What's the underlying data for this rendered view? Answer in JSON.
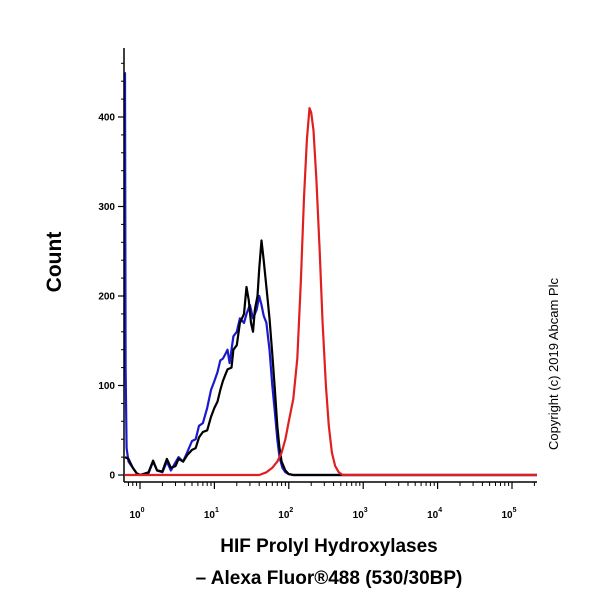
{
  "chart_data": {
    "type": "line",
    "title": "",
    "xlabel_line1": "HIF Prolyl Hydroxylases",
    "xlabel_line2": "– Alexa Fluor®488 (530/30BP)",
    "ylabel": "Count",
    "copyright": "Copyright (c) 2019 Abcam Plc",
    "xscale": "log",
    "xlim": [
      0.6,
      250000
    ],
    "ylim": [
      0,
      460
    ],
    "grid": false,
    "legend": "none",
    "yticks": [
      {
        "value": 0,
        "label": "0"
      },
      {
        "value": 100,
        "label": "100"
      },
      {
        "value": 200,
        "label": "200"
      },
      {
        "value": 300,
        "label": "300"
      },
      {
        "value": 400,
        "label": "400"
      }
    ],
    "xticks": [
      {
        "value": 1,
        "base": "10",
        "exp": "0"
      },
      {
        "value": 10,
        "base": "10",
        "exp": "1"
      },
      {
        "value": 100,
        "base": "10",
        "exp": "2"
      },
      {
        "value": 1000,
        "base": "10",
        "exp": "3"
      },
      {
        "value": 10000,
        "base": "10",
        "exp": "4"
      },
      {
        "value": 100000,
        "base": "10",
        "exp": "5"
      }
    ],
    "series": [
      {
        "color": "#1a1acc",
        "points": [
          [
            0.62,
            450
          ],
          [
            0.64,
            120
          ],
          [
            0.66,
            30
          ],
          [
            0.7,
            15
          ],
          [
            0.8,
            8
          ],
          [
            0.9,
            2
          ],
          [
            1.0,
            0
          ],
          [
            1.3,
            2
          ],
          [
            1.5,
            15
          ],
          [
            1.7,
            5
          ],
          [
            2.0,
            3
          ],
          [
            2.3,
            15
          ],
          [
            2.6,
            5
          ],
          [
            2.9,
            12
          ],
          [
            3.3,
            20
          ],
          [
            3.8,
            15
          ],
          [
            4.3,
            25
          ],
          [
            5.0,
            38
          ],
          [
            5.6,
            40
          ],
          [
            6.2,
            55
          ],
          [
            7.0,
            58
          ],
          [
            8.0,
            75
          ],
          [
            9.0,
            95
          ],
          [
            10,
            105
          ],
          [
            11,
            115
          ],
          [
            12,
            128
          ],
          [
            13,
            130
          ],
          [
            14,
            135
          ],
          [
            15,
            140
          ],
          [
            16,
            125
          ],
          [
            17,
            140
          ],
          [
            18,
            155
          ],
          [
            20,
            160
          ],
          [
            22,
            175
          ],
          [
            25,
            170
          ],
          [
            27,
            180
          ],
          [
            30,
            190
          ],
          [
            33,
            175
          ],
          [
            37,
            185
          ],
          [
            40,
            200
          ],
          [
            43,
            190
          ],
          [
            46,
            178
          ],
          [
            50,
            170
          ],
          [
            55,
            140
          ],
          [
            60,
            100
          ],
          [
            65,
            70
          ],
          [
            70,
            40
          ],
          [
            75,
            20
          ],
          [
            82,
            8
          ],
          [
            90,
            3
          ],
          [
            100,
            1
          ],
          [
            115,
            0
          ],
          [
            250000,
            0
          ]
        ]
      },
      {
        "color": "#000000",
        "points": [
          [
            0.62,
            20
          ],
          [
            0.7,
            18
          ],
          [
            0.8,
            8
          ],
          [
            0.9,
            2
          ],
          [
            1.0,
            0
          ],
          [
            1.3,
            3
          ],
          [
            1.5,
            16
          ],
          [
            1.7,
            5
          ],
          [
            2.0,
            4
          ],
          [
            2.3,
            18
          ],
          [
            2.6,
            8
          ],
          [
            3.0,
            10
          ],
          [
            3.3,
            18
          ],
          [
            3.8,
            15
          ],
          [
            4.3,
            22
          ],
          [
            5.0,
            28
          ],
          [
            5.6,
            30
          ],
          [
            6.2,
            42
          ],
          [
            7.0,
            48
          ],
          [
            8.0,
            50
          ],
          [
            9.0,
            65
          ],
          [
            10,
            75
          ],
          [
            11,
            82
          ],
          [
            12,
            95
          ],
          [
            13,
            105
          ],
          [
            14,
            112
          ],
          [
            15,
            118
          ],
          [
            17,
            120
          ],
          [
            18,
            140
          ],
          [
            20,
            145
          ],
          [
            22,
            170
          ],
          [
            25,
            180
          ],
          [
            27,
            210
          ],
          [
            29,
            195
          ],
          [
            31,
            170
          ],
          [
            33,
            160
          ],
          [
            35,
            185
          ],
          [
            38,
            200
          ],
          [
            40,
            230
          ],
          [
            43,
            262
          ],
          [
            46,
            240
          ],
          [
            50,
            210
          ],
          [
            55,
            175
          ],
          [
            60,
            135
          ],
          [
            65,
            95
          ],
          [
            70,
            55
          ],
          [
            75,
            30
          ],
          [
            80,
            15
          ],
          [
            90,
            5
          ],
          [
            100,
            1
          ],
          [
            115,
            0
          ],
          [
            250000,
            0
          ]
        ]
      },
      {
        "color": "#e02020",
        "points": [
          [
            0.62,
            0
          ],
          [
            30,
            0
          ],
          [
            40,
            0
          ],
          [
            50,
            3
          ],
          [
            60,
            8
          ],
          [
            70,
            15
          ],
          [
            80,
            25
          ],
          [
            90,
            40
          ],
          [
            100,
            60
          ],
          [
            115,
            85
          ],
          [
            130,
            130
          ],
          [
            145,
            215
          ],
          [
            160,
            310
          ],
          [
            175,
            375
          ],
          [
            190,
            410
          ],
          [
            200,
            405
          ],
          [
            215,
            385
          ],
          [
            235,
            330
          ],
          [
            260,
            250
          ],
          [
            285,
            170
          ],
          [
            315,
            100
          ],
          [
            345,
            55
          ],
          [
            380,
            25
          ],
          [
            420,
            10
          ],
          [
            470,
            3
          ],
          [
            530,
            0
          ],
          [
            250000,
            0
          ]
        ]
      }
    ]
  }
}
